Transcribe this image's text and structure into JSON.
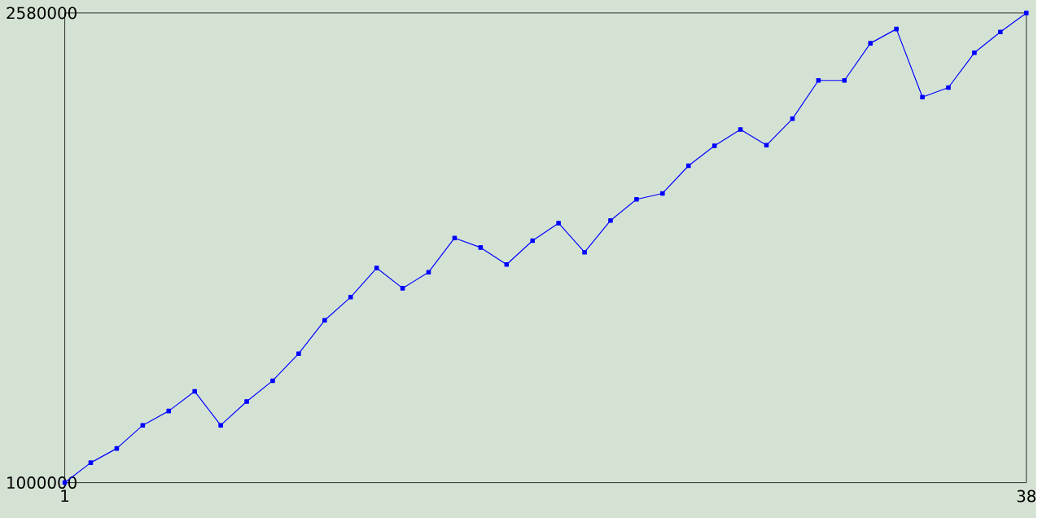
{
  "chart_data": {
    "type": "line",
    "x": [
      1,
      2,
      3,
      4,
      5,
      6,
      7,
      8,
      9,
      10,
      11,
      12,
      13,
      14,
      15,
      16,
      17,
      18,
      19,
      20,
      21,
      22,
      23,
      24,
      25,
      26,
      27,
      28,
      29,
      30,
      31,
      32,
      33,
      34,
      35,
      36,
      37,
      38
    ],
    "series": [
      {
        "color": "#0000ff",
        "values": [
          1000000,
          1067000,
          1115000,
          1193000,
          1241000,
          1307000,
          1193000,
          1273000,
          1343000,
          1434000,
          1546000,
          1624000,
          1722000,
          1654000,
          1708000,
          1823000,
          1791000,
          1734000,
          1814000,
          1873000,
          1775000,
          1882000,
          1953000,
          1973000,
          2066000,
          2133000,
          2188000,
          2135000,
          2224000,
          2353000,
          2353000,
          2478000,
          2526000,
          2297000,
          2329000,
          2446000,
          2516000,
          2580000
        ]
      }
    ],
    "xlim": [
      1,
      38
    ],
    "xticks": [
      1,
      38
    ],
    "ylim": [
      1000000,
      2580000
    ],
    "yticks": [
      1000000,
      2580000
    ],
    "grid": false,
    "marker": "square",
    "line_style": "solid"
  }
}
